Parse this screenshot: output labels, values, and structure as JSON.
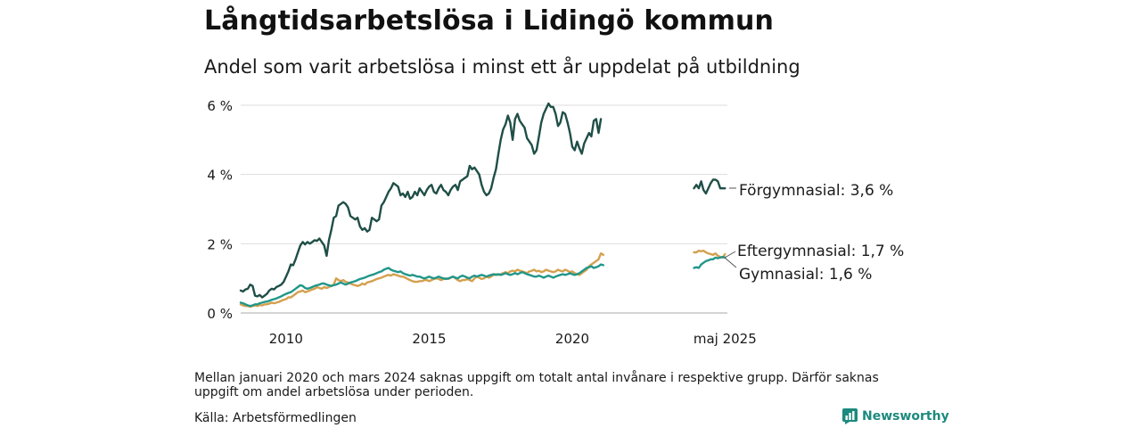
{
  "header": {
    "title": "Långtidsarbetslösa i Lidingö kommun",
    "subtitle": "Andel som varit arbetslösa i minst ett år uppdelat på utbildning"
  },
  "footer": {
    "note": "Mellan januari 2020 och mars 2024 saknas uppgift om totalt antal invånare i respektive grupp. Därför saknas uppgift om andel arbetslösa under perioden.",
    "source": "Källa: Arbetsförmedlingen",
    "brand": "Newsworthy",
    "brand_icon": "newsworthy-logo-icon"
  },
  "chart_data": {
    "type": "line",
    "y_ticks": [
      "0 %",
      "2 %",
      "4 %",
      "6 %"
    ],
    "ylim": [
      0,
      6
    ],
    "x_ticks": [
      "2010",
      "2015",
      "2020",
      "maj 2025"
    ],
    "grid": true,
    "series": [
      {
        "name": "Förgymnasial",
        "label": "Förgymnasial: 3,6 %",
        "color": "#1f4f47",
        "main": {
          "start": "2008-06",
          "values": [
            0.65,
            0.62,
            0.68,
            0.7,
            0.82,
            0.78,
            0.5,
            0.48,
            0.52,
            0.45,
            0.5,
            0.55,
            0.65,
            0.7,
            0.68,
            0.75,
            0.78,
            0.82,
            0.9,
            1.05,
            1.2,
            1.4,
            1.38,
            1.55,
            1.75,
            1.95,
            2.05,
            1.98,
            2.05,
            2.0,
            2.05,
            2.1,
            2.08,
            2.15,
            2.05,
            1.95,
            1.65,
            2.1,
            2.4,
            2.75,
            2.8,
            3.1,
            3.15,
            3.2,
            3.15,
            3.05,
            2.8,
            2.75,
            2.7,
            2.75,
            2.5,
            2.4,
            2.45,
            2.35,
            2.4,
            2.75,
            2.7,
            2.65,
            2.7,
            3.1,
            3.2,
            3.35,
            3.5,
            3.6,
            3.75,
            3.7,
            3.65,
            3.4,
            3.45,
            3.35,
            3.5,
            3.3,
            3.35,
            3.5,
            3.4,
            3.6,
            3.5,
            3.4,
            3.55,
            3.65,
            3.7,
            3.5,
            3.45,
            3.6,
            3.7,
            3.55,
            3.5,
            3.4,
            3.55,
            3.65,
            3.7,
            3.55,
            3.8,
            3.85,
            3.9,
            3.95,
            4.25,
            4.15,
            4.2,
            4.1,
            4.0,
            3.7,
            3.5,
            3.4,
            3.45,
            3.6,
            3.9,
            4.15,
            4.6,
            5.0,
            5.3,
            5.45,
            5.7,
            5.5,
            5.0,
            5.6,
            5.75,
            5.55,
            5.45,
            5.35,
            5.05,
            4.95,
            4.85,
            4.6,
            4.7,
            5.1,
            5.5,
            5.75,
            5.9,
            6.05,
            5.95,
            5.95,
            5.75,
            5.4,
            5.5,
            5.8,
            5.75,
            5.5,
            5.2,
            4.8,
            4.7,
            4.95,
            4.75,
            4.6,
            4.9,
            5.05,
            5.2,
            5.1,
            5.55,
            5.6,
            5.2,
            5.6
          ]
        },
        "recent": {
          "start": "2024-04",
          "values": [
            3.6,
            3.7,
            3.6,
            3.8,
            3.55,
            3.45,
            3.6,
            3.75,
            3.85,
            3.85,
            3.8,
            3.6,
            3.6,
            3.6
          ]
        }
      },
      {
        "name": "Eftergymnasial",
        "label": "Eftergymnasial: 1,7 %",
        "color": "#d4a04e",
        "main": {
          "start": "2008-06",
          "values": [
            0.25,
            0.22,
            0.2,
            0.2,
            0.18,
            0.2,
            0.22,
            0.2,
            0.23,
            0.22,
            0.25,
            0.25,
            0.27,
            0.3,
            0.28,
            0.3,
            0.32,
            0.35,
            0.38,
            0.4,
            0.45,
            0.45,
            0.5,
            0.55,
            0.6,
            0.62,
            0.65,
            0.6,
            0.62,
            0.65,
            0.68,
            0.7,
            0.75,
            0.72,
            0.7,
            0.75,
            0.72,
            0.75,
            0.78,
            0.82,
            1.0,
            0.95,
            0.92,
            0.95,
            0.9,
            0.88,
            0.85,
            0.82,
            0.8,
            0.78,
            0.8,
            0.85,
            0.82,
            0.88,
            0.9,
            0.92,
            0.95,
            0.98,
            1.0,
            1.02,
            1.05,
            1.08,
            1.1,
            1.08,
            1.12,
            1.1,
            1.08,
            1.05,
            1.05,
            1.02,
            0.98,
            0.95,
            0.92,
            0.9,
            0.9,
            0.92,
            0.92,
            0.95,
            0.95,
            0.92,
            0.95,
            0.98,
            1.0,
            0.98,
            0.95,
            0.98,
            1.0,
            0.98,
            1.02,
            1.05,
            1.0,
            0.95,
            0.92,
            0.95,
            0.95,
            0.98,
            0.95,
            0.92,
            1.0,
            1.05,
            1.02,
            0.98,
            1.0,
            1.05,
            1.02,
            1.05,
            1.1,
            1.12,
            1.1,
            1.12,
            1.15,
            1.18,
            1.15,
            1.2,
            1.22,
            1.2,
            1.25,
            1.22,
            1.2,
            1.18,
            1.15,
            1.2,
            1.22,
            1.25,
            1.2,
            1.22,
            1.18,
            1.2,
            1.25,
            1.22,
            1.2,
            1.18,
            1.2,
            1.25,
            1.22,
            1.2,
            1.25,
            1.22,
            1.18,
            1.2,
            1.15,
            1.12,
            1.1,
            1.15,
            1.2,
            1.25,
            1.35,
            1.4,
            1.45,
            1.5,
            1.55,
            1.72,
            1.68
          ]
        },
        "recent": {
          "start": "2024-04",
          "values": [
            1.75,
            1.75,
            1.8,
            1.78,
            1.8,
            1.75,
            1.72,
            1.7,
            1.68,
            1.72,
            1.65,
            1.62,
            1.6,
            1.7
          ]
        }
      },
      {
        "name": "Gymnasial",
        "label": "Gymnasial: 1,6 %",
        "color": "#21968a",
        "main": {
          "start": "2008-06",
          "values": [
            0.3,
            0.28,
            0.25,
            0.22,
            0.2,
            0.22,
            0.25,
            0.25,
            0.28,
            0.3,
            0.32,
            0.33,
            0.35,
            0.38,
            0.4,
            0.42,
            0.45,
            0.48,
            0.52,
            0.55,
            0.58,
            0.6,
            0.65,
            0.7,
            0.75,
            0.8,
            0.78,
            0.72,
            0.7,
            0.72,
            0.75,
            0.78,
            0.8,
            0.82,
            0.85,
            0.85,
            0.82,
            0.8,
            0.78,
            0.8,
            0.82,
            0.85,
            0.88,
            0.85,
            0.82,
            0.85,
            0.88,
            0.9,
            0.92,
            0.95,
            0.98,
            1.0,
            1.02,
            1.05,
            1.08,
            1.1,
            1.12,
            1.15,
            1.18,
            1.2,
            1.25,
            1.28,
            1.3,
            1.25,
            1.22,
            1.2,
            1.18,
            1.2,
            1.15,
            1.12,
            1.1,
            1.08,
            1.1,
            1.08,
            1.05,
            1.05,
            1.02,
            1.0,
            1.02,
            1.05,
            1.02,
            1.0,
            1.02,
            1.05,
            1.02,
            1.0,
            0.98,
            1.0,
            1.02,
            1.05,
            1.02,
            1.0,
            1.05,
            1.08,
            1.05,
            1.02,
            1.0,
            1.05,
            1.08,
            1.05,
            1.08,
            1.1,
            1.08,
            1.05,
            1.08,
            1.1,
            1.12,
            1.1,
            1.12,
            1.1,
            1.12,
            1.15,
            1.12,
            1.1,
            1.12,
            1.15,
            1.12,
            1.15,
            1.18,
            1.15,
            1.12,
            1.1,
            1.08,
            1.05,
            1.05,
            1.08,
            1.05,
            1.02,
            1.05,
            1.08,
            1.05,
            1.02,
            1.05,
            1.08,
            1.1,
            1.12,
            1.1,
            1.12,
            1.15,
            1.12,
            1.1,
            1.12,
            1.15,
            1.2,
            1.25,
            1.3,
            1.32,
            1.35,
            1.3,
            1.32,
            1.35,
            1.4,
            1.38
          ]
        },
        "recent": {
          "start": "2024-04",
          "values": [
            1.3,
            1.32,
            1.3,
            1.4,
            1.45,
            1.5,
            1.52,
            1.55,
            1.55,
            1.6,
            1.58,
            1.6,
            1.62,
            1.6
          ]
        }
      }
    ]
  }
}
